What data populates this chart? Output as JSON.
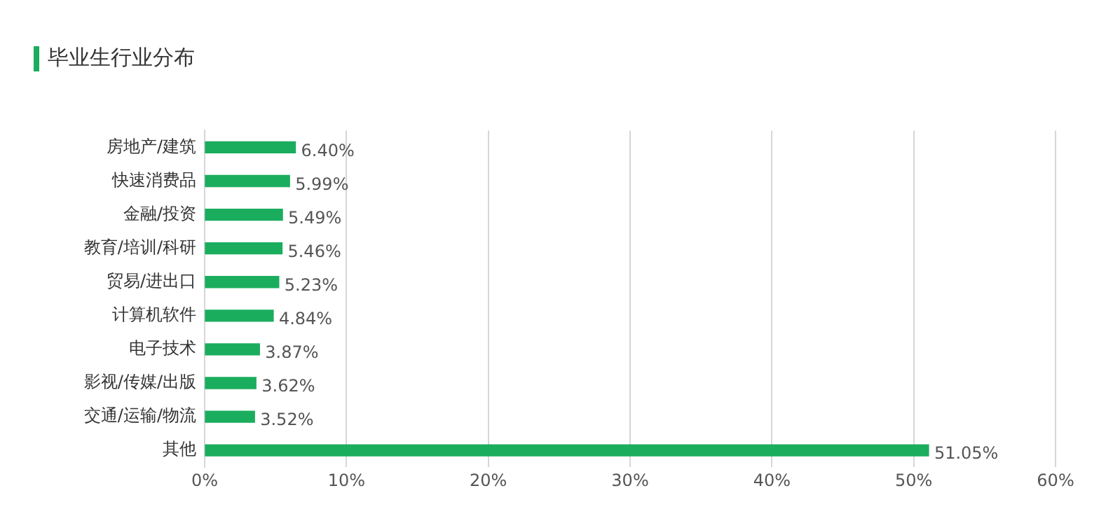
{
  "chart_data": {
    "type": "bar",
    "orientation": "horizontal",
    "title": "毕业生行业分布",
    "categories": [
      "房地产/建筑",
      "快速消费品",
      "金融/投资",
      "教育/培训/科研",
      "贸易/进出口",
      "计算机软件",
      "电子技术",
      "影视/传媒/出版",
      "交通/运输/物流",
      "其他"
    ],
    "values": [
      6.4,
      5.99,
      5.49,
      5.46,
      5.23,
      4.84,
      3.87,
      3.62,
      3.52,
      51.05
    ],
    "value_labels": [
      "6.40%",
      "5.99%",
      "5.49%",
      "5.46%",
      "5.23%",
      "4.84%",
      "3.87%",
      "3.62%",
      "3.52%",
      "51.05%"
    ],
    "color": "#1aad5e",
    "xlim": [
      0,
      60
    ],
    "xticks": [
      {
        "value": 0,
        "label": "0%"
      },
      {
        "value": 10,
        "label": "10%"
      },
      {
        "value": 20,
        "label": "20%"
      },
      {
        "value": 30,
        "label": "30%"
      },
      {
        "value": 40,
        "label": "40%"
      },
      {
        "value": 50,
        "label": "50%"
      },
      {
        "value": 60,
        "label": "60%"
      }
    ],
    "grid": "x",
    "legend": false
  }
}
